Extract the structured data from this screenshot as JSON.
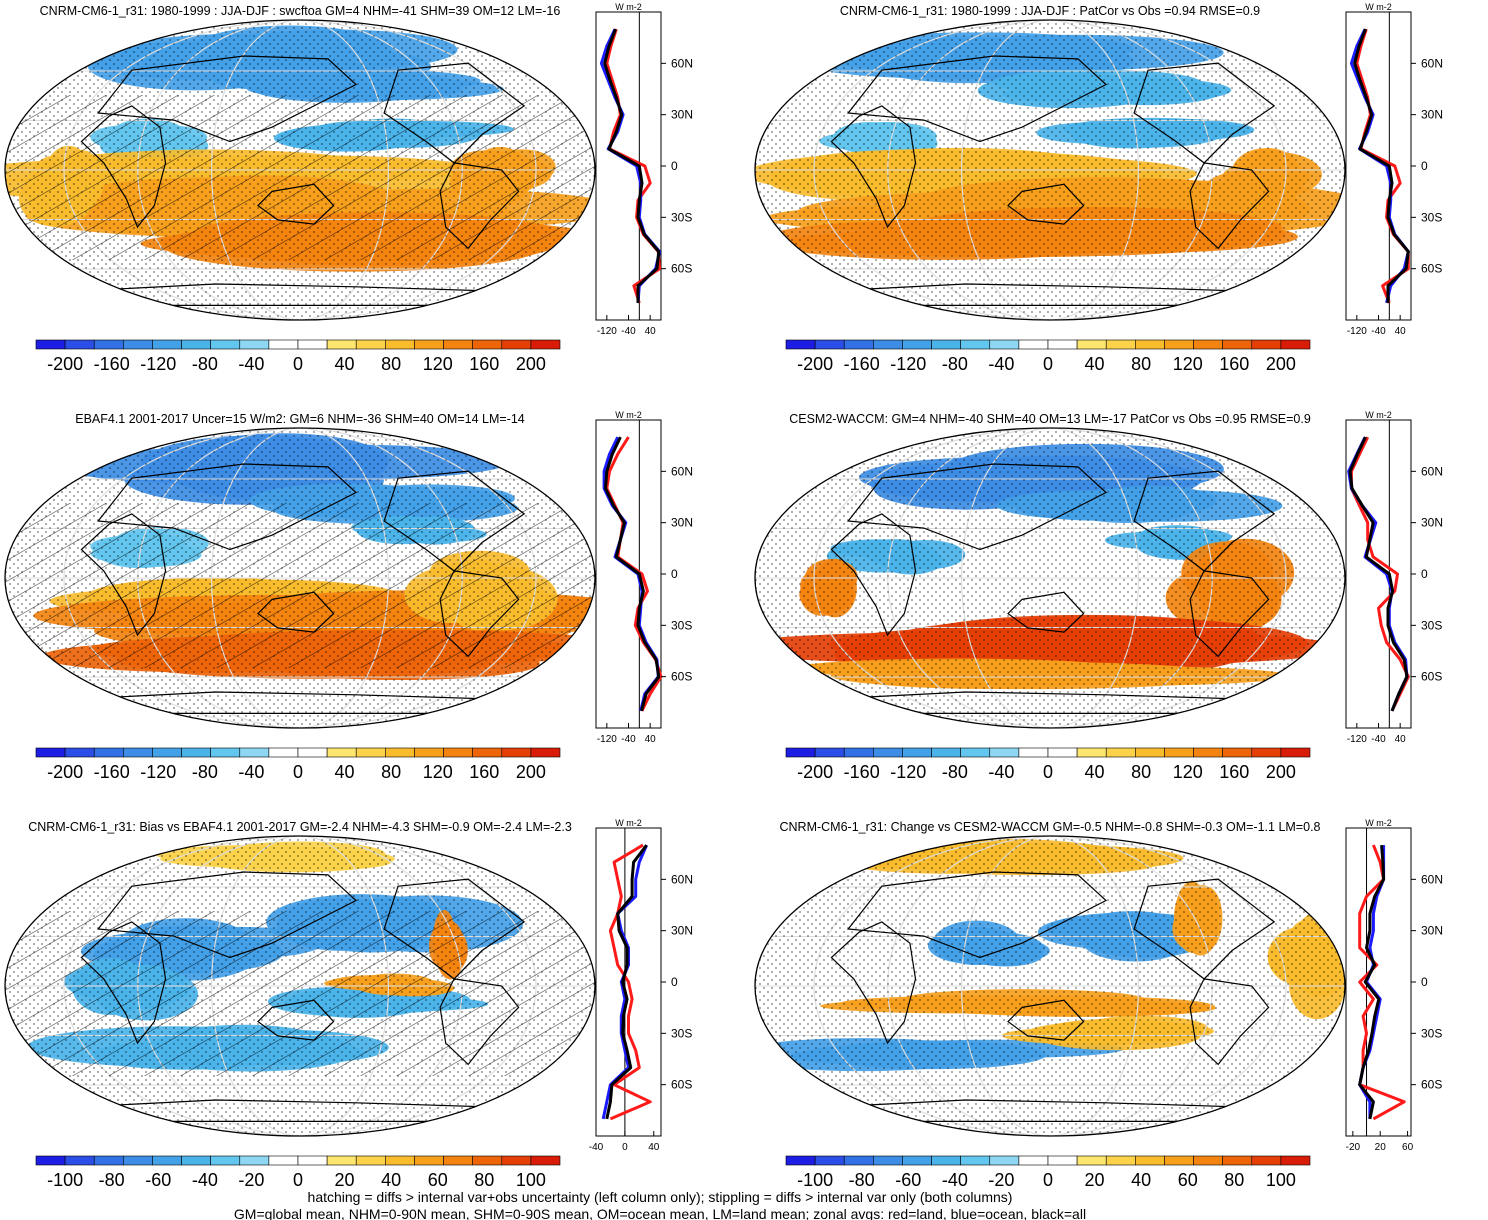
{
  "colors": {
    "neg": [
      "#1d1de3",
      "#2b4ee8",
      "#3270e6",
      "#3d8de6",
      "#43a1e8",
      "#4ab4ea",
      "#62c6ef",
      "#8dd7f3"
    ],
    "pos": [
      "#fde66e",
      "#fbd24a",
      "#f9bc2d",
      "#f7a01c",
      "#f4840f",
      "#ee6409",
      "#e63f06",
      "#d91c07"
    ],
    "land_line": "#ff1a1a",
    "ocean_line": "#1a1aff",
    "all_line": "#000000"
  },
  "panels": [
    {
      "title": "CNRM-CM6-1_r31: 1980-1999 : JJA-DJF : swcftoa GM=4 NHM=-41 SHM=39 OM=12 LM=-16",
      "colorbar_labels": [
        "-200",
        "-160",
        "-120",
        "-80",
        "-40",
        "0",
        "40",
        "80",
        "120",
        "160",
        "200"
      ],
      "zonal_units": "W m-2",
      "zonal_ticks": [
        "-120",
        "-40",
        "40"
      ],
      "lat_labels": [
        "60N",
        "30N",
        "0",
        "30S",
        "60S"
      ]
    },
    {
      "title": "CNRM-CM6-1_r31: 1980-1999 : JJA-DJF : PatCor vs Obs =0.94 RMSE=0.9",
      "colorbar_labels": [
        "-200",
        "-160",
        "-120",
        "-80",
        "-40",
        "0",
        "40",
        "80",
        "120",
        "160",
        "200"
      ],
      "zonal_units": "W m-2",
      "zonal_ticks": [
        "-120",
        "-40",
        "40"
      ],
      "lat_labels": [
        "60N",
        "30N",
        "0",
        "30S",
        "60S"
      ]
    },
    {
      "title": "EBAF4.1 2001-2017 Uncer=15 W/m2: GM=6 NHM=-36 SHM=40 OM=14 LM=-14",
      "colorbar_labels": [
        "-200",
        "-160",
        "-120",
        "-80",
        "-40",
        "0",
        "40",
        "80",
        "120",
        "160",
        "200"
      ],
      "zonal_units": "W m-2",
      "zonal_ticks": [
        "-120",
        "-40",
        "40"
      ],
      "lat_labels": [
        "60N",
        "30N",
        "0",
        "30S",
        "60S"
      ]
    },
    {
      "title": "CESM2-WACCM: GM=4 NHM=-40 SHM=40 OM=13 LM=-17 PatCor vs Obs =0.95 RMSE=0.9",
      "colorbar_labels": [
        "-200",
        "-160",
        "-120",
        "-80",
        "-40",
        "0",
        "40",
        "80",
        "120",
        "160",
        "200"
      ],
      "zonal_units": "W m-2",
      "zonal_ticks": [
        "-120",
        "-40",
        "40"
      ],
      "lat_labels": [
        "60N",
        "30N",
        "0",
        "30S",
        "60S"
      ]
    },
    {
      "title": "CNRM-CM6-1_r31: Bias vs EBAF4.1 2001-2017 GM=-2.4 NHM=-4.3 SHM=-0.9 OM=-2.4 LM=-2.3",
      "colorbar_labels": [
        "-100",
        "-80",
        "-60",
        "-40",
        "-20",
        "0",
        "20",
        "40",
        "60",
        "80",
        "100"
      ],
      "zonal_units": "W m-2",
      "zonal_ticks": [
        "-40",
        "0",
        "40"
      ],
      "lat_labels": [
        "60N",
        "30N",
        "0",
        "30S",
        "60S"
      ]
    },
    {
      "title": "CNRM-CM6-1_r31: Change vs CESM2-WACCM GM=-0.5 NHM=-0.8 SHM=-0.3 OM=-1.1 LM=0.8",
      "colorbar_labels": [
        "-100",
        "-80",
        "-60",
        "-40",
        "-20",
        "0",
        "20",
        "40",
        "60",
        "80",
        "100"
      ],
      "zonal_units": "W m-2",
      "zonal_ticks": [
        "-20",
        "20",
        "60"
      ],
      "lat_labels": [
        "60N",
        "30N",
        "0",
        "30S",
        "60S"
      ]
    }
  ],
  "chart_data": [
    {
      "type": "heatmap",
      "title": "CNRM-CM6-1_r31: 1980-1999 : JJA-DJF : swcftoa GM=4 NHM=-41 SHM=39 OM=12 LM=-16",
      "colorbar_range": [
        -200,
        200
      ],
      "zonal_profile": {
        "xlim": [
          -160,
          80
        ],
        "ylim": [
          -90,
          90
        ],
        "lat": [
          -80,
          -70,
          -60,
          -50,
          -40,
          -30,
          -20,
          -10,
          0,
          10,
          20,
          30,
          40,
          50,
          60,
          70,
          80
        ],
        "land": [
          0,
          -20,
          75,
          70,
          15,
          -10,
          -5,
          40,
          20,
          -110,
          -95,
          -70,
          -80,
          -100,
          -120,
          -105,
          -85
        ],
        "ocean": [
          -5,
          0,
          60,
          75,
          20,
          0,
          5,
          5,
          -10,
          -115,
          -80,
          -60,
          -90,
          -115,
          -140,
          -120,
          -90
        ],
        "all": [
          -5,
          -5,
          65,
          72,
          18,
          -5,
          0,
          10,
          0,
          -112,
          -85,
          -65,
          -85,
          -108,
          -128,
          -112,
          -88
        ]
      }
    },
    {
      "type": "heatmap",
      "title": "CNRM-CM6-1_r31: 1980-1999 : JJA-DJF : PatCor vs Obs =0.94 RMSE=0.9",
      "colorbar_range": [
        -200,
        200
      ],
      "zonal_profile": {
        "xlim": [
          -160,
          80
        ],
        "ylim": [
          -90,
          90
        ],
        "lat": [
          -80,
          -70,
          -60,
          -50,
          -40,
          -30,
          -20,
          -10,
          0,
          10,
          20,
          30,
          40,
          50,
          60,
          70,
          80
        ],
        "land": [
          0,
          -25,
          70,
          70,
          15,
          -10,
          -5,
          40,
          20,
          -105,
          -90,
          -70,
          -80,
          -100,
          -120,
          -105,
          -85
        ],
        "ocean": [
          -10,
          5,
          55,
          70,
          20,
          0,
          5,
          5,
          -10,
          -110,
          -80,
          -60,
          -90,
          -115,
          -140,
          -120,
          -90
        ],
        "all": [
          -5,
          -5,
          62,
          70,
          18,
          -5,
          0,
          10,
          0,
          -108,
          -85,
          -65,
          -85,
          -108,
          -128,
          -112,
          -88
        ]
      }
    },
    {
      "type": "heatmap",
      "title": "EBAF4.1 2001-2017 Uncer=15 W/m2: GM=6 NHM=-36 SHM=40 OM=14 LM=-14",
      "colorbar_range": [
        -200,
        200
      ],
      "zonal_profile": {
        "xlim": [
          -160,
          80
        ],
        "ylim": [
          -90,
          90
        ],
        "lat": [
          -80,
          -70,
          -60,
          -50,
          -40,
          -30,
          -20,
          -10,
          0,
          10,
          20,
          30,
          40,
          50,
          60,
          70,
          80
        ],
        "land": [
          10,
          40,
          80,
          60,
          15,
          -15,
          -5,
          30,
          10,
          -80,
          -70,
          -60,
          -90,
          -120,
          -110,
          -80,
          -40
        ],
        "ocean": [
          5,
          20,
          70,
          65,
          25,
          0,
          5,
          10,
          -5,
          -90,
          -70,
          -50,
          -100,
          -130,
          -130,
          -110,
          -80
        ],
        "all": [
          8,
          25,
          72,
          62,
          20,
          -5,
          0,
          15,
          0,
          -85,
          -70,
          -55,
          -95,
          -125,
          -120,
          -100,
          -70
        ]
      }
    },
    {
      "type": "heatmap",
      "title": "CESM2-WACCM: GM=4 NHM=-40 SHM=40 OM=13 LM=-17 PatCor vs Obs =0.95 RMSE=0.9",
      "colorbar_range": [
        -200,
        200
      ],
      "zonal_profile": {
        "xlim": [
          -160,
          80
        ],
        "ylim": [
          -90,
          90
        ],
        "lat": [
          -80,
          -70,
          -60,
          -50,
          -40,
          -30,
          -20,
          -10,
          0,
          10,
          20,
          30,
          40,
          50,
          60,
          70,
          80
        ],
        "land": [
          10,
          40,
          70,
          40,
          -10,
          -30,
          -40,
          20,
          30,
          -60,
          -80,
          -80,
          -110,
          -140,
          -140,
          -110,
          -80
        ],
        "ocean": [
          10,
          35,
          65,
          60,
          20,
          0,
          0,
          10,
          -10,
          -90,
          -70,
          -50,
          -100,
          -140,
          -150,
          -120,
          -90
        ],
        "all": [
          10,
          35,
          65,
          55,
          15,
          -5,
          -5,
          12,
          0,
          -85,
          -72,
          -60,
          -100,
          -138,
          -145,
          -118,
          -88
        ]
      }
    },
    {
      "type": "heatmap",
      "title": "CNRM-CM6-1_r31: Bias vs EBAF4.1 2001-2017 GM=-2.4 NHM=-4.3 SHM=-0.9 OM=-2.4 LM=-2.3",
      "colorbar_range": [
        -100,
        100
      ],
      "zonal_profile": {
        "xlim": [
          -40,
          50
        ],
        "ylim": [
          -90,
          90
        ],
        "lat": [
          -80,
          -70,
          -60,
          -50,
          -40,
          -30,
          -20,
          -10,
          0,
          10,
          20,
          30,
          40,
          50,
          60,
          70,
          80
        ],
        "land": [
          -20,
          35,
          -15,
          20,
          15,
          5,
          5,
          10,
          5,
          -10,
          -15,
          -20,
          -10,
          -5,
          -10,
          -15,
          25
        ],
        "ocean": [
          -30,
          -25,
          -20,
          5,
          0,
          -5,
          -5,
          0,
          -5,
          5,
          5,
          -5,
          -10,
          15,
          15,
          20,
          30
        ],
        "all": [
          -25,
          -20,
          -18,
          8,
          3,
          -3,
          -2,
          3,
          -3,
          3,
          3,
          -8,
          -10,
          10,
          10,
          12,
          30
        ]
      }
    },
    {
      "type": "heatmap",
      "title": "CNRM-CM6-1_r31: Change vs CESM2-WACCM GM=-0.5 NHM=-0.8 SHM=-0.3 OM=-1.1 LM=0.8",
      "colorbar_range": [
        -100,
        100
      ],
      "zonal_profile": {
        "xlim": [
          -30,
          65
        ],
        "ylim": [
          -90,
          90
        ],
        "lat": [
          -80,
          -70,
          -60,
          -50,
          -40,
          -30,
          -20,
          -10,
          0,
          10,
          20,
          30,
          40,
          50,
          60,
          70,
          80
        ],
        "land": [
          10,
          55,
          -10,
          -5,
          -5,
          0,
          -5,
          10,
          -10,
          15,
          -10,
          -10,
          -10,
          0,
          25,
          20,
          10
        ],
        "ocean": [
          5,
          5,
          -10,
          -5,
          5,
          10,
          15,
          20,
          0,
          10,
          5,
          10,
          10,
          15,
          25,
          25,
          25
        ],
        "all": [
          5,
          10,
          -10,
          -5,
          3,
          8,
          12,
          18,
          -2,
          12,
          0,
          5,
          5,
          12,
          25,
          24,
          22
        ]
      }
    }
  ],
  "footer": {
    "line1": "hatching = diffs > internal var+obs uncertainty (left column only); stippling = diffs > internal var only (both columns)",
    "line2": "GM=global mean, NHM=0-90N mean, SHM=0-90S mean, OM=ocean mean, LM=land mean; zonal avgs: red=land, blue=ocean, black=all"
  }
}
